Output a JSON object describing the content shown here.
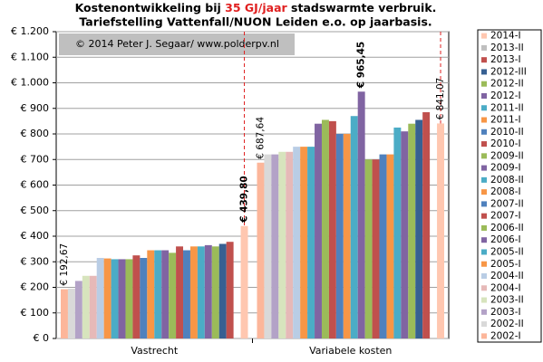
{
  "chart_data": {
    "type": "bar",
    "title": [
      "Kostenontwikkeling bij ",
      "35 GJ/jaar",
      " stadswarmte verbruik."
    ],
    "subtitle": "Tariefstelling Vattenfall/NUON Leiden e.o. op jaarbasis.",
    "annotation": "© 2014 Peter J. Segaar/ www.polderpv.nl",
    "categories": [
      "Vastrecht",
      "Variabele kosten"
    ],
    "ylim": [
      0,
      1200
    ],
    "yticks": [
      {
        "value": 0,
        "label": "€ 0"
      },
      {
        "value": 100,
        "label": "€ 100"
      },
      {
        "value": 200,
        "label": "€ 200"
      },
      {
        "value": 300,
        "label": "€ 300"
      },
      {
        "value": 400,
        "label": "€ 400"
      },
      {
        "value": 500,
        "label": "€ 500"
      },
      {
        "value": 600,
        "label": "€ 600"
      },
      {
        "value": 700,
        "label": "€ 700"
      },
      {
        "value": 800,
        "label": "€ 800"
      },
      {
        "value": 900,
        "label": "€ 900"
      },
      {
        "value": 1000,
        "label": "€ 1.000"
      },
      {
        "value": 1100,
        "label": "€ 1.100"
      },
      {
        "value": 1200,
        "label": "€ 1.200"
      }
    ],
    "grid": true,
    "series": [
      {
        "name": "2002-I",
        "color": "#fcb69a",
        "values": [
          192.67,
          687.64
        ],
        "value_labels": [
          "€ 192,67",
          "€ 687,64"
        ]
      },
      {
        "name": "2002-II",
        "color": "#d9d9d9",
        "values": [
          195,
          720
        ]
      },
      {
        "name": "2003-I",
        "color": "#b3a2c7",
        "values": [
          225,
          720
        ]
      },
      {
        "name": "2003-II",
        "color": "#d7e4bd",
        "values": [
          245,
          730
        ]
      },
      {
        "name": "2004-I",
        "color": "#e6b9b8",
        "values": [
          245,
          730
        ]
      },
      {
        "name": "2004-II",
        "color": "#b9cde5",
        "values": [
          315,
          750
        ]
      },
      {
        "name": "2005-I",
        "color": "#f79646",
        "values": [
          313,
          750
        ]
      },
      {
        "name": "2005-II",
        "color": "#4bacc6",
        "values": [
          310,
          750
        ]
      },
      {
        "name": "2006-I",
        "color": "#8064a2",
        "values": [
          310,
          840
        ]
      },
      {
        "name": "2006-II",
        "color": "#9bbb59",
        "values": [
          310,
          855
        ]
      },
      {
        "name": "2007-I",
        "color": "#c0504d",
        "values": [
          325,
          850
        ]
      },
      {
        "name": "2007-II",
        "color": "#4f81bd",
        "values": [
          315,
          800
        ]
      },
      {
        "name": "2008-I",
        "color": "#f79646",
        "values": [
          345,
          800
        ]
      },
      {
        "name": "2008-II",
        "color": "#4bacc6",
        "values": [
          345,
          870
        ]
      },
      {
        "name": "2009-I",
        "color": "#8064a2",
        "values": [
          345,
          965.45
        ],
        "value_labels": [
          null,
          "€ 965,45"
        ]
      },
      {
        "name": "2009-II",
        "color": "#9bbb59",
        "values": [
          335,
          700
        ]
      },
      {
        "name": "2010-I",
        "color": "#c0504d",
        "values": [
          360,
          700
        ]
      },
      {
        "name": "2010-II",
        "color": "#4f81bd",
        "values": [
          345,
          720
        ]
      },
      {
        "name": "2011-I",
        "color": "#f79646",
        "values": [
          360,
          720
        ]
      },
      {
        "name": "2011-II",
        "color": "#4bacc6",
        "values": [
          360,
          825
        ]
      },
      {
        "name": "2012-I",
        "color": "#8064a2",
        "values": [
          365,
          810
        ]
      },
      {
        "name": "2012-II",
        "color": "#9bbb59",
        "values": [
          360,
          840
        ]
      },
      {
        "name": "2012-III",
        "color": "#376092",
        "values": [
          370,
          855
        ]
      },
      {
        "name": "2013-I",
        "color": "#c0504d",
        "values": [
          378,
          885
        ]
      },
      {
        "name": "2013-II",
        "color": "#bfbfbf",
        "values": [
          null,
          null
        ]
      },
      {
        "name": "2014-I",
        "color": "#ffc7b0",
        "values": [
          439.8,
          841.07
        ],
        "value_labels": [
          "€ 439,80",
          "€ 841,07"
        ]
      }
    ]
  }
}
